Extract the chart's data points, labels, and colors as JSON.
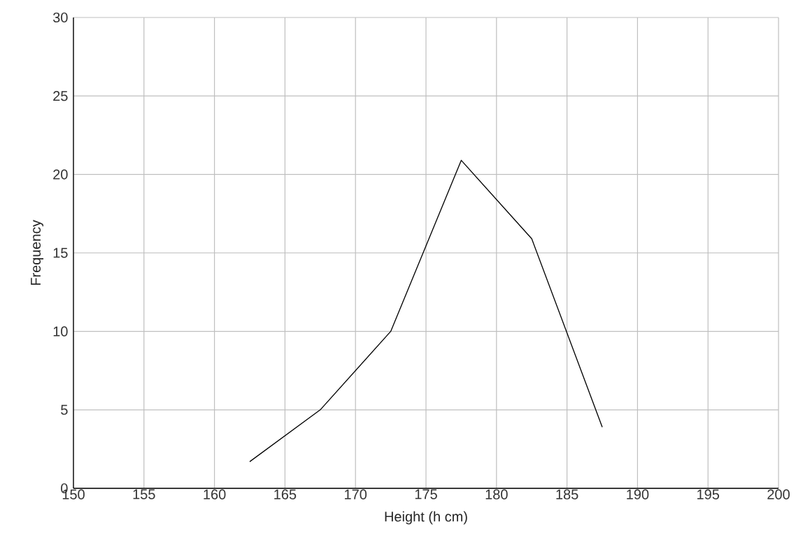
{
  "chart_data": {
    "type": "line",
    "xlabel": "Height (h cm)",
    "ylabel": "Frequency",
    "x": [
      162.5,
      167.5,
      172.5,
      177.5,
      182.5,
      187.5
    ],
    "series": [
      {
        "color": "#000000",
        "values": [
          1.7,
          5.0,
          10.0,
          20.9,
          15.9,
          3.9
        ]
      }
    ],
    "xlim": [
      150,
      200
    ],
    "xticks": [
      150,
      155,
      160,
      165,
      170,
      175,
      180,
      185,
      190,
      195,
      200
    ],
    "ylim": [
      0,
      30
    ],
    "yticks": [
      0,
      5,
      10,
      15,
      20,
      25,
      30
    ],
    "grid": true,
    "marker": "none",
    "line_style": "solid"
  }
}
